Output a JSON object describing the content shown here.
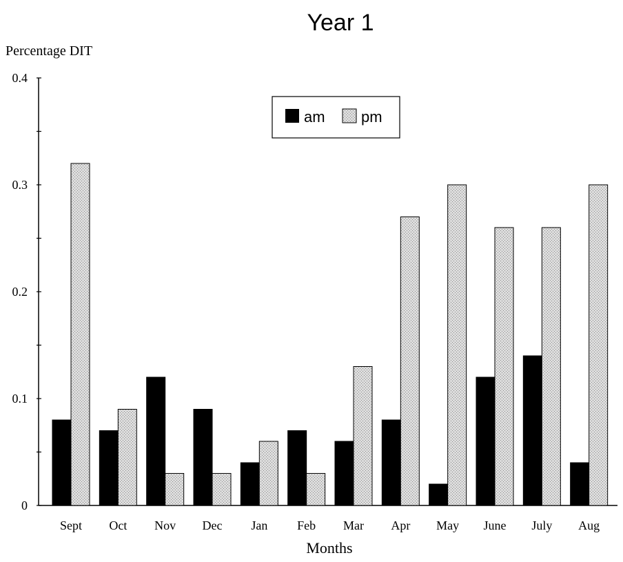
{
  "chart_data": {
    "type": "bar",
    "title": "Year 1",
    "ylabel": "Percentage DIT",
    "xlabel": "Months",
    "ylim": [
      0,
      0.4
    ],
    "y_ticks": [
      0,
      0.1,
      0.2,
      0.3,
      0.4
    ],
    "y_tick_labels": [
      "0",
      "0.1",
      "0.2",
      "0.3",
      "0.4"
    ],
    "y_minor_step": 0.05,
    "categories": [
      "Sept",
      "Oct",
      "Nov",
      "Dec",
      "Jan",
      "Feb",
      "Mar",
      "Apr",
      "May",
      "June",
      "July",
      "Aug"
    ],
    "series": [
      {
        "name": "am",
        "fill": "solid-black",
        "values": [
          0.08,
          0.07,
          0.12,
          0.09,
          0.04,
          0.07,
          0.06,
          0.08,
          0.02,
          0.12,
          0.14,
          0.04
        ]
      },
      {
        "name": "pm",
        "fill": "stippled-gray",
        "values": [
          0.32,
          0.09,
          0.03,
          0.03,
          0.06,
          0.03,
          0.13,
          0.27,
          0.3,
          0.26,
          0.26,
          0.3
        ]
      }
    ],
    "legend_position": "top-center",
    "grid": false,
    "colors": {
      "am": "#000000",
      "pm": "#d4d4d4",
      "axis": "#000000"
    }
  }
}
